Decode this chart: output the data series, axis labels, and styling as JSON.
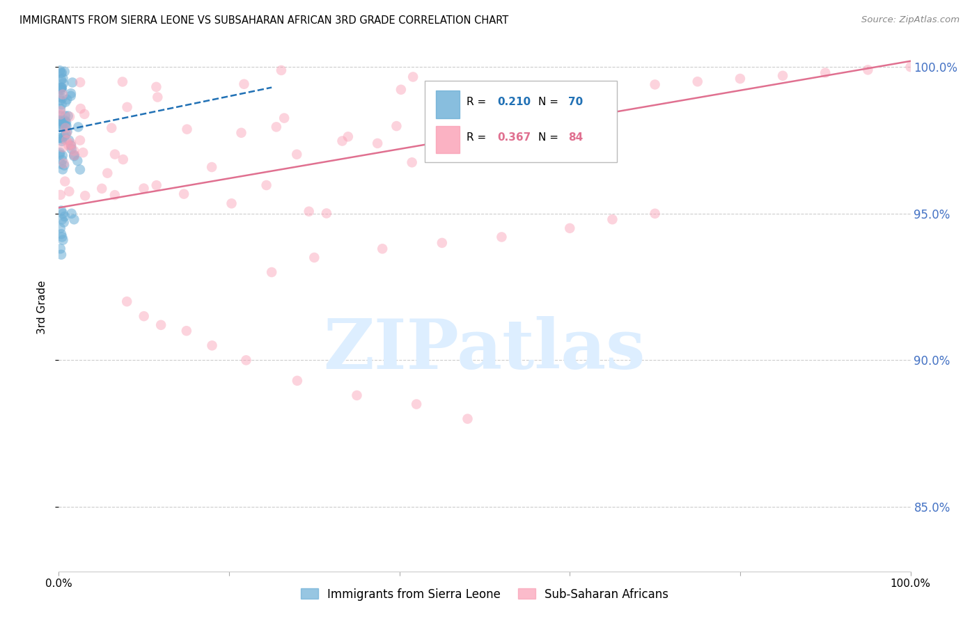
{
  "title": "IMMIGRANTS FROM SIERRA LEONE VS SUBSAHARAN AFRICAN 3RD GRADE CORRELATION CHART",
  "source": "Source: ZipAtlas.com",
  "ylabel": "3rd Grade",
  "legend_label_1": "Immigrants from Sierra Leone",
  "legend_label_2": "Sub-Saharan Africans",
  "r1": 0.21,
  "n1": 70,
  "r2": 0.367,
  "n2": 84,
  "color1": "#6baed6",
  "color2": "#fa9fb5",
  "trendline1_color": "#2171b5",
  "trendline2_color": "#e07090",
  "xlim": [
    0.0,
    1.0
  ],
  "ylim": [
    0.828,
    1.008
  ],
  "ytick_positions": [
    0.85,
    0.9,
    0.95,
    1.0
  ],
  "ytick_labels": [
    "85.0%",
    "90.0%",
    "95.0%",
    "100.0%"
  ],
  "ytick_color": "#4472c4",
  "watermark_text": "ZIPatlas",
  "watermark_color": "#ddeeff",
  "grid_color": "#cccccc",
  "background_color": "#ffffff"
}
